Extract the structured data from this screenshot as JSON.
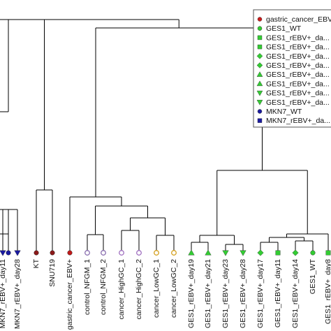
{
  "chart_data": {
    "type": "dendrogram",
    "title": "",
    "xlabel": "",
    "ylabel": "",
    "leaves": [
      {
        "label": "",
        "color": "#1a1aa0",
        "shape": "circle"
      },
      {
        "label": "",
        "color": "#1a1aa0",
        "shape": "circle"
      },
      {
        "label": "MKN7_rEBV+_day11",
        "color": "#1a1aa0",
        "shape": "triangle-down"
      },
      {
        "label": "MKN7_rEBV+_day28",
        "color": "#1a1aa0",
        "shape": "triangle-down"
      },
      {
        "label": "KT",
        "color": "#8b1a1a",
        "shape": "circle"
      },
      {
        "label": "SNU719",
        "color": "#8b1a1a",
        "shape": "circle"
      },
      {
        "label": "gastric_cancer_EBV+",
        "color": "#c01a1a",
        "shape": "circle"
      },
      {
        "label": "control_NFGM_1",
        "color": "#8a6fb0",
        "shape": "circle-open"
      },
      {
        "label": "control_NFGM_2",
        "color": "#8a6fb0",
        "shape": "circle-open"
      },
      {
        "label": "cancer_HighGC_1",
        "color": "#a070c0",
        "shape": "circle-open"
      },
      {
        "label": "cancer_HighGC_2",
        "color": "#a070c0",
        "shape": "circle-open"
      },
      {
        "label": "cancer_LowGC_1",
        "color": "#d4a020",
        "shape": "circle-open"
      },
      {
        "label": "cancer_LowGC_2",
        "color": "#d4a020",
        "shape": "circle-open"
      },
      {
        "label": "GES1_rEBV+_day19",
        "color": "#33cc33",
        "shape": "triangle-up"
      },
      {
        "label": "GES1_rEBV+_day21",
        "color": "#33cc33",
        "shape": "triangle-up"
      },
      {
        "label": "GES1_rEBV+_day23",
        "color": "#33cc33",
        "shape": "triangle-down"
      },
      {
        "label": "GES1_rEBV+_day28",
        "color": "#33cc33",
        "shape": "triangle-down"
      },
      {
        "label": "GES1_rEBV+_day17",
        "color": "#33cc33",
        "shape": "diamond"
      },
      {
        "label": "GES1_rEBV+_day11",
        "color": "#33cc33",
        "shape": "square"
      },
      {
        "label": "GES1_rEBV+_day14",
        "color": "#33cc33",
        "shape": "diamond"
      },
      {
        "label": "GES1_WT",
        "color": "#33cc33",
        "shape": "circle"
      },
      {
        "label": "GES1_rEBV+_day8",
        "color": "#33cc33",
        "shape": "square"
      }
    ],
    "legend": {
      "placement": "top-right",
      "items": [
        {
          "label": "gastric_cancer_EBV+",
          "color": "#cc1a1a",
          "shape": "circle"
        },
        {
          "label": "GES1_WT",
          "color": "#33cc33",
          "shape": "circle"
        },
        {
          "label": "GES1_rEBV+_da...",
          "color": "#33cc33",
          "shape": "square"
        },
        {
          "label": "GES1_rEBV+_da...",
          "color": "#33cc33",
          "shape": "square"
        },
        {
          "label": "GES1_rEBV+_da...",
          "color": "#33cc33",
          "shape": "diamond"
        },
        {
          "label": "GES1_rEBV+_da...",
          "color": "#33cc33",
          "shape": "diamond"
        },
        {
          "label": "GES1_rEBV+_da...",
          "color": "#33cc33",
          "shape": "triangle-up"
        },
        {
          "label": "GES1_rEBV+_da...",
          "color": "#33cc33",
          "shape": "triangle-up"
        },
        {
          "label": "GES1_rEBV+_da...",
          "color": "#33cc33",
          "shape": "triangle-down"
        },
        {
          "label": "GES1_rEBV+_da...",
          "color": "#33cc33",
          "shape": "triangle-down"
        },
        {
          "label": "MKN7_WT",
          "color": "#1a1aa0",
          "shape": "circle"
        },
        {
          "label": "MKN7_rEBV+_da...",
          "color": "#1a1aa0",
          "shape": "square"
        }
      ]
    }
  }
}
